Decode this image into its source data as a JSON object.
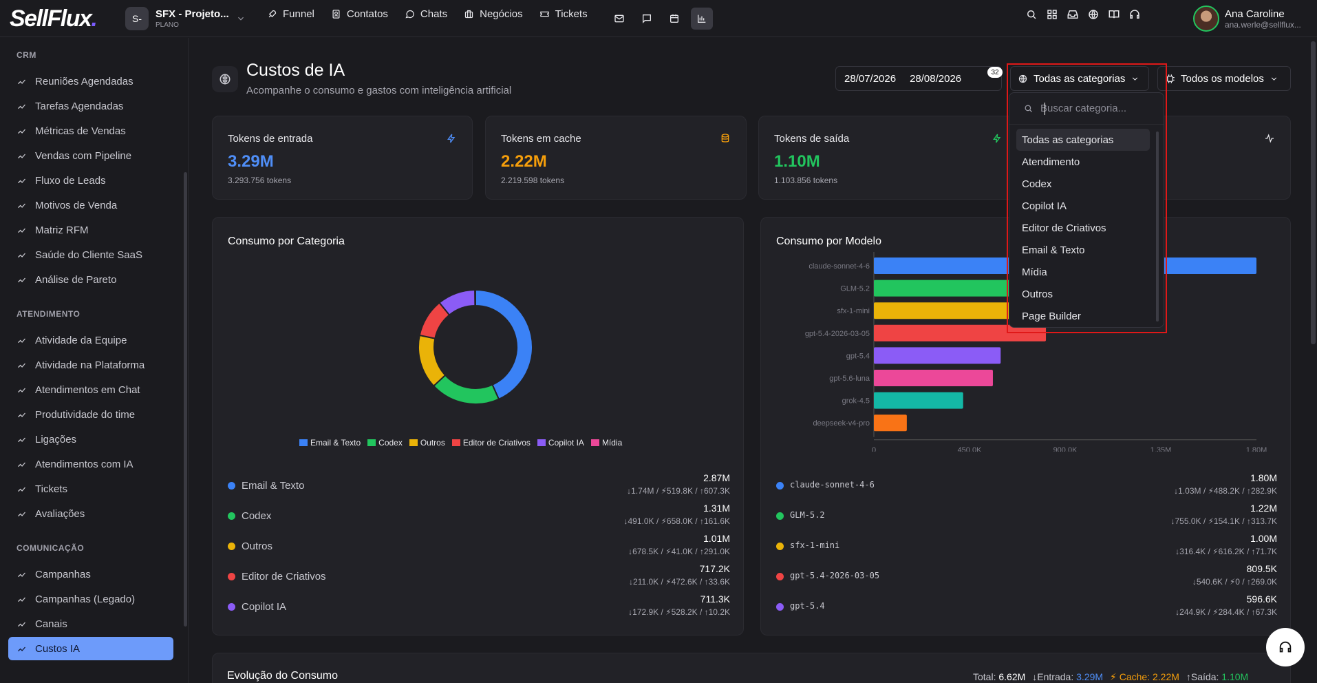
{
  "header": {
    "logo_text": "SellFlux",
    "project": {
      "badge": "S-",
      "name": "SFX - Projeto...",
      "plan": "PLANO"
    },
    "nav": [
      {
        "label": "Funnel",
        "icon": "rocket-icon"
      },
      {
        "label": "Contatos",
        "icon": "contacts-icon"
      },
      {
        "label": "Chats",
        "icon": "chat-icon"
      },
      {
        "label": "Negócios",
        "icon": "briefcase-icon"
      },
      {
        "label": "Tickets",
        "icon": "ticket-icon"
      }
    ],
    "quick_icons": [
      "mail-icon",
      "message-icon",
      "calendar-icon",
      "bar-chart-icon"
    ],
    "tool_icons": [
      "search-icon",
      "grid-icon",
      "inbox-icon",
      "globe-icon",
      "book-icon",
      "headset-icon"
    ],
    "user": {
      "name": "Ana Caroline",
      "email": "ana.werle@sellflux..."
    }
  },
  "sidebar": {
    "sections": [
      {
        "title": "CRM",
        "items": [
          "Reuniões Agendadas",
          "Tarefas Agendadas",
          "Métricas de Vendas",
          "Vendas com Pipeline",
          "Fluxo de Leads",
          "Motivos de Venda",
          "Matriz RFM",
          "Saúde do Cliente SaaS",
          "Análise de Pareto"
        ]
      },
      {
        "title": "ATENDIMENTO",
        "items": [
          "Atividade da Equipe",
          "Atividade na Plataforma",
          "Atendimentos em Chat",
          "Produtividade do time",
          "Ligações",
          "Atendimentos com IA",
          "Tickets",
          "Avaliações"
        ]
      },
      {
        "title": "COMUNICAÇÃO",
        "items": [
          "Campanhas",
          "Campanhas (Legado)",
          "Canais",
          "Custos IA"
        ]
      }
    ],
    "active_item": "Custos IA"
  },
  "page": {
    "title": "Custos de IA",
    "subtitle": "Acompanhe o consumo e gastos com inteligência artificial",
    "date_start": "28/07/2026",
    "date_end": "28/08/2026",
    "badge": "32",
    "category_filter": "Todas as categorias",
    "model_filter": "Todos os modelos"
  },
  "kpis": [
    {
      "label": "Tokens de entrada",
      "value": "3.29M",
      "sub": "3.293.756 tokens",
      "color": "#4f8ef7",
      "icon": "zap-icon"
    },
    {
      "label": "Tokens em cache",
      "value": "2.22M",
      "sub": "2.219.598 tokens",
      "color": "#f59e0b",
      "icon": "database-icon"
    },
    {
      "label": "Tokens de saída",
      "value": "1.10M",
      "sub": "1.103.856 tokens",
      "color": "#22c55e",
      "icon": "zap-icon"
    }
  ],
  "kpi4_icon": "activity-icon",
  "dropdown": {
    "search_placeholder": "Buscar categoria...",
    "options": [
      "Todas as categorias",
      "Atendimento",
      "Codex",
      "Copilot IA",
      "Editor de Criativos",
      "Email & Texto",
      "Mídia",
      "Outros",
      "Page Builder"
    ],
    "selected": "Todas as categorias"
  },
  "category_card": {
    "title": "Consumo por Categoria",
    "rows": [
      {
        "name": "Email & Texto",
        "total": "2.87M",
        "breakdown": "↓1.74M / ⚡519.8K / ↑607.3K",
        "color": "#3b82f6"
      },
      {
        "name": "Codex",
        "total": "1.31M",
        "breakdown": "↓491.0K / ⚡658.0K / ↑161.6K",
        "color": "#22c55e"
      },
      {
        "name": "Outros",
        "total": "1.01M",
        "breakdown": "↓678.5K / ⚡41.0K / ↑291.0K",
        "color": "#eab308"
      },
      {
        "name": "Editor de Criativos",
        "total": "717.2K",
        "breakdown": "↓211.0K / ⚡472.6K / ↑33.6K",
        "color": "#ef4444"
      },
      {
        "name": "Copilot IA",
        "total": "711.3K",
        "breakdown": "↓172.9K / ⚡528.2K / ↑10.2K",
        "color": "#8b5cf6"
      }
    ],
    "legend": [
      {
        "name": "Email & Texto",
        "color": "#3b82f6"
      },
      {
        "name": "Codex",
        "color": "#22c55e"
      },
      {
        "name": "Outros",
        "color": "#eab308"
      },
      {
        "name": "Editor de Criativos",
        "color": "#ef4444"
      },
      {
        "name": "Copilot IA",
        "color": "#8b5cf6"
      },
      {
        "name": "Mídia",
        "color": "#ec4899"
      }
    ]
  },
  "model_card": {
    "title": "Consumo por Modelo",
    "rows": [
      {
        "name": "claude-sonnet-4-6",
        "total": "1.80M",
        "breakdown": "↓1.03M / ⚡488.2K / ↑282.9K",
        "color": "#3b82f6"
      },
      {
        "name": "GLM-5.2",
        "total": "1.22M",
        "breakdown": "↓755.0K / ⚡154.1K / ↑313.7K",
        "color": "#22c55e"
      },
      {
        "name": "sfx-1-mini",
        "total": "1.00M",
        "breakdown": "↓316.4K / ⚡616.2K / ↑71.7K",
        "color": "#eab308"
      },
      {
        "name": "gpt-5.4-2026-03-05",
        "total": "809.5K",
        "breakdown": "↓540.6K / ⚡0 / ↑269.0K",
        "color": "#ef4444"
      },
      {
        "name": "gpt-5.4",
        "total": "596.6K",
        "breakdown": "↓244.9K / ⚡284.4K / ↑67.3K",
        "color": "#8b5cf6"
      }
    ]
  },
  "chart_data": [
    {
      "type": "pie",
      "categories": [
        "Email & Texto",
        "Codex",
        "Outros",
        "Editor de Criativos",
        "Copilot IA",
        "Mídia"
      ],
      "values": [
        2.87,
        1.31,
        1.01,
        0.7172,
        0.7113,
        0.01
      ],
      "colors": [
        "#3b82f6",
        "#22c55e",
        "#eab308",
        "#ef4444",
        "#8b5cf6",
        "#ec4899"
      ],
      "donut": true,
      "legend": "bottom"
    },
    {
      "type": "bar",
      "orientation": "horizontal",
      "categories": [
        "claude-sonnet-4-6",
        "GLM-5.2",
        "sfx-1-mini",
        "gpt-5.4-2026-03-05",
        "gpt-5.4",
        "gpt-5.6-luna",
        "grok-4.5",
        "deepseek-v4-pro"
      ],
      "values": [
        1.8,
        1.22,
        1.0,
        0.8095,
        0.5966,
        0.56,
        0.42,
        0.155
      ],
      "colors": [
        "#3b82f6",
        "#22c55e",
        "#eab308",
        "#ef4444",
        "#8b5cf6",
        "#ec4899",
        "#14b8a6",
        "#f97316"
      ],
      "xticks": [
        "0",
        "450.0K",
        "900.0K",
        "1.35M",
        "1.80M"
      ],
      "xlim": [
        0,
        1.8
      ]
    }
  ],
  "evolution": {
    "title": "Evolução do Consumo",
    "total_label": "Total:",
    "total": "6.62M",
    "in_label": "↓Entrada:",
    "in": "3.29M",
    "cache_label": "⚡ Cache:",
    "cache": "2.22M",
    "out_label": "↑Saída:",
    "out": "1.10M"
  }
}
